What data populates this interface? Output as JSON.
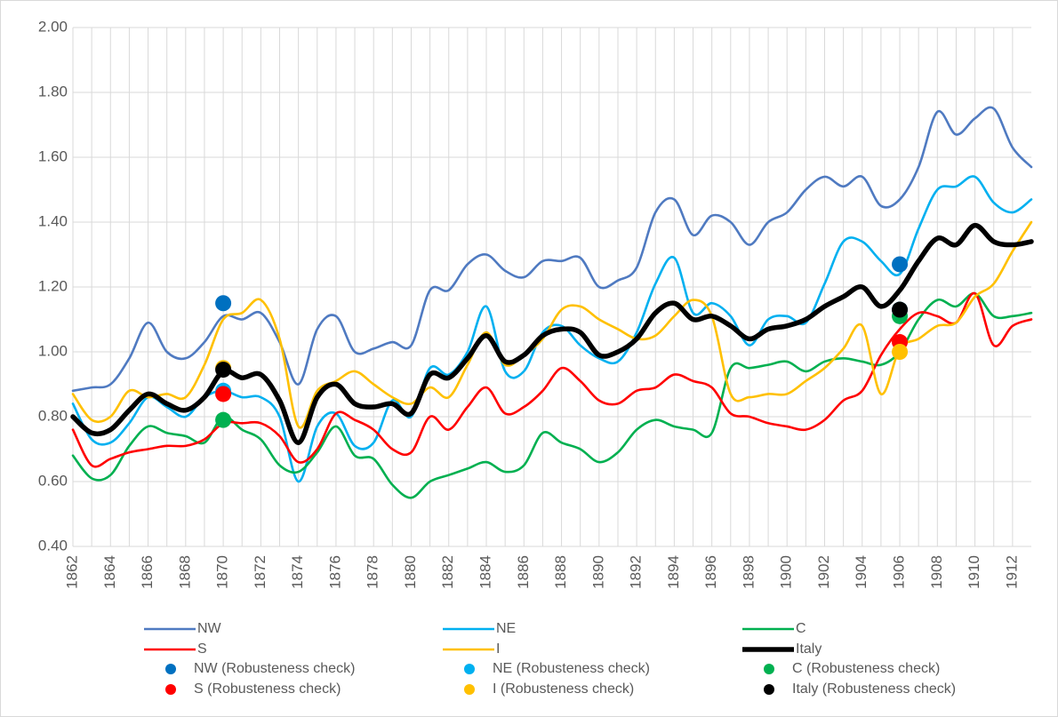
{
  "chart_data": {
    "type": "line",
    "x": [
      1862,
      1863,
      1864,
      1865,
      1866,
      1867,
      1868,
      1869,
      1870,
      1871,
      1872,
      1873,
      1874,
      1875,
      1876,
      1877,
      1878,
      1879,
      1880,
      1881,
      1882,
      1883,
      1884,
      1885,
      1886,
      1887,
      1888,
      1889,
      1890,
      1891,
      1892,
      1893,
      1894,
      1895,
      1896,
      1897,
      1898,
      1899,
      1900,
      1901,
      1902,
      1903,
      1904,
      1905,
      1906,
      1907,
      1908,
      1909,
      1910,
      1911,
      1912,
      1913
    ],
    "xlim": [
      1862,
      1913
    ],
    "xticks": [
      1862,
      1864,
      1866,
      1868,
      1870,
      1872,
      1874,
      1876,
      1878,
      1880,
      1882,
      1884,
      1886,
      1888,
      1890,
      1892,
      1894,
      1896,
      1898,
      1900,
      1902,
      1904,
      1906,
      1908,
      1910,
      1912
    ],
    "ylim": [
      0.4,
      2.0
    ],
    "yticks": [
      {
        "value": 0.4,
        "label": "0.40"
      },
      {
        "value": 0.6,
        "label": "0.60"
      },
      {
        "value": 0.8,
        "label": "0.80"
      },
      {
        "value": 1.0,
        "label": "1.00"
      },
      {
        "value": 1.2,
        "label": "1.20"
      },
      {
        "value": 1.4,
        "label": "1.40"
      },
      {
        "value": 1.6,
        "label": "1.60"
      },
      {
        "value": 1.8,
        "label": "1.80"
      },
      {
        "value": 2.0,
        "label": "2.00"
      }
    ],
    "grid": true,
    "legend": "bottom",
    "series": [
      {
        "name": "NW",
        "type": "line",
        "color": "#4f7ac1",
        "values": [
          0.88,
          0.89,
          0.9,
          0.98,
          1.09,
          1.0,
          0.98,
          1.03,
          1.11,
          1.1,
          1.12,
          1.03,
          0.9,
          1.07,
          1.11,
          1.0,
          1.01,
          1.03,
          1.02,
          1.19,
          1.19,
          1.27,
          1.3,
          1.25,
          1.23,
          1.28,
          1.28,
          1.29,
          1.2,
          1.22,
          1.26,
          1.43,
          1.47,
          1.36,
          1.42,
          1.4,
          1.33,
          1.4,
          1.43,
          1.5,
          1.54,
          1.51,
          1.54,
          1.45,
          1.47,
          1.57,
          1.74,
          1.67,
          1.72,
          1.75,
          1.63,
          1.57
        ]
      },
      {
        "name": "NE",
        "type": "line",
        "color": "#00b0f0",
        "values": [
          0.84,
          0.73,
          0.72,
          0.78,
          0.86,
          0.83,
          0.8,
          0.86,
          0.88,
          0.86,
          0.86,
          0.8,
          0.6,
          0.77,
          0.81,
          0.71,
          0.72,
          0.85,
          0.8,
          0.95,
          0.93,
          1.0,
          1.14,
          0.94,
          0.94,
          1.06,
          1.08,
          1.02,
          0.98,
          0.97,
          1.06,
          1.21,
          1.29,
          1.12,
          1.15,
          1.11,
          1.02,
          1.1,
          1.11,
          1.09,
          1.21,
          1.34,
          1.34,
          1.28,
          1.24,
          1.38,
          1.5,
          1.51,
          1.54,
          1.46,
          1.43,
          1.47
        ]
      },
      {
        "name": "C",
        "type": "line",
        "color": "#00b050",
        "values": [
          0.68,
          0.61,
          0.62,
          0.71,
          0.77,
          0.75,
          0.74,
          0.72,
          0.8,
          0.76,
          0.73,
          0.65,
          0.63,
          0.69,
          0.77,
          0.68,
          0.67,
          0.59,
          0.55,
          0.6,
          0.62,
          0.64,
          0.66,
          0.63,
          0.65,
          0.75,
          0.72,
          0.7,
          0.66,
          0.69,
          0.76,
          0.79,
          0.77,
          0.76,
          0.75,
          0.95,
          0.95,
          0.96,
          0.97,
          0.94,
          0.97,
          0.98,
          0.97,
          0.96,
          1.0,
          1.1,
          1.16,
          1.14,
          1.18,
          1.11,
          1.11,
          1.12
        ]
      },
      {
        "name": "S",
        "type": "line",
        "color": "#ff0000",
        "values": [
          0.76,
          0.65,
          0.67,
          0.69,
          0.7,
          0.71,
          0.71,
          0.73,
          0.78,
          0.78,
          0.78,
          0.74,
          0.66,
          0.7,
          0.81,
          0.79,
          0.76,
          0.7,
          0.69,
          0.8,
          0.76,
          0.83,
          0.89,
          0.81,
          0.83,
          0.88,
          0.95,
          0.91,
          0.85,
          0.84,
          0.88,
          0.89,
          0.93,
          0.91,
          0.89,
          0.81,
          0.8,
          0.78,
          0.77,
          0.76,
          0.79,
          0.85,
          0.88,
          0.99,
          1.07,
          1.12,
          1.11,
          1.09,
          1.18,
          1.02,
          1.08,
          1.1
        ]
      },
      {
        "name": "I",
        "type": "line",
        "color": "#ffc000",
        "values": [
          0.87,
          0.79,
          0.8,
          0.88,
          0.86,
          0.87,
          0.86,
          0.96,
          1.1,
          1.12,
          1.16,
          1.04,
          0.77,
          0.88,
          0.91,
          0.94,
          0.9,
          0.86,
          0.84,
          0.89,
          0.86,
          0.96,
          1.06,
          0.96,
          0.99,
          1.04,
          1.13,
          1.14,
          1.1,
          1.07,
          1.04,
          1.05,
          1.11,
          1.16,
          1.11,
          0.87,
          0.86,
          0.87,
          0.87,
          0.91,
          0.95,
          1.01,
          1.08,
          0.87,
          1.01,
          1.04,
          1.08,
          1.09,
          1.17,
          1.21,
          1.31,
          1.4
        ]
      },
      {
        "name": "Italy",
        "type": "line",
        "color": "#000000",
        "values": [
          0.8,
          0.75,
          0.76,
          0.82,
          0.87,
          0.84,
          0.82,
          0.86,
          0.94,
          0.92,
          0.93,
          0.85,
          0.72,
          0.86,
          0.9,
          0.84,
          0.83,
          0.84,
          0.81,
          0.93,
          0.92,
          0.98,
          1.05,
          0.97,
          0.99,
          1.05,
          1.07,
          1.06,
          0.99,
          1.0,
          1.04,
          1.12,
          1.15,
          1.1,
          1.11,
          1.08,
          1.04,
          1.07,
          1.08,
          1.1,
          1.14,
          1.17,
          1.2,
          1.14,
          1.19,
          1.28,
          1.35,
          1.33,
          1.39,
          1.34,
          1.33,
          1.34
        ]
      },
      {
        "name": "NW (Robusteness check)",
        "type": "scatter",
        "color": "#0070c0",
        "x": [
          1870,
          1906
        ],
        "values": [
          1.15,
          1.27
        ]
      },
      {
        "name": "NE (Robusteness check)",
        "type": "scatter",
        "color": "#00b0f0",
        "x": [
          1870,
          1906
        ],
        "values": [
          0.88,
          1.13
        ]
      },
      {
        "name": "C (Robusteness check)",
        "type": "scatter",
        "color": "#00b050",
        "x": [
          1870,
          1906
        ],
        "values": [
          0.79,
          1.11
        ]
      },
      {
        "name": "S (Robusteness check)",
        "type": "scatter",
        "color": "#ff0000",
        "x": [
          1870,
          1906
        ],
        "values": [
          0.87,
          1.03
        ]
      },
      {
        "name": "I (Robusteness check)",
        "type": "scatter",
        "color": "#ffc000",
        "x": [
          1870,
          1906
        ],
        "values": [
          0.95,
          1.0
        ]
      },
      {
        "name": "Italy (Robusteness check)",
        "type": "scatter",
        "color": "#000000",
        "x": [
          1870,
          1906
        ],
        "values": [
          0.945,
          1.13
        ]
      }
    ]
  }
}
